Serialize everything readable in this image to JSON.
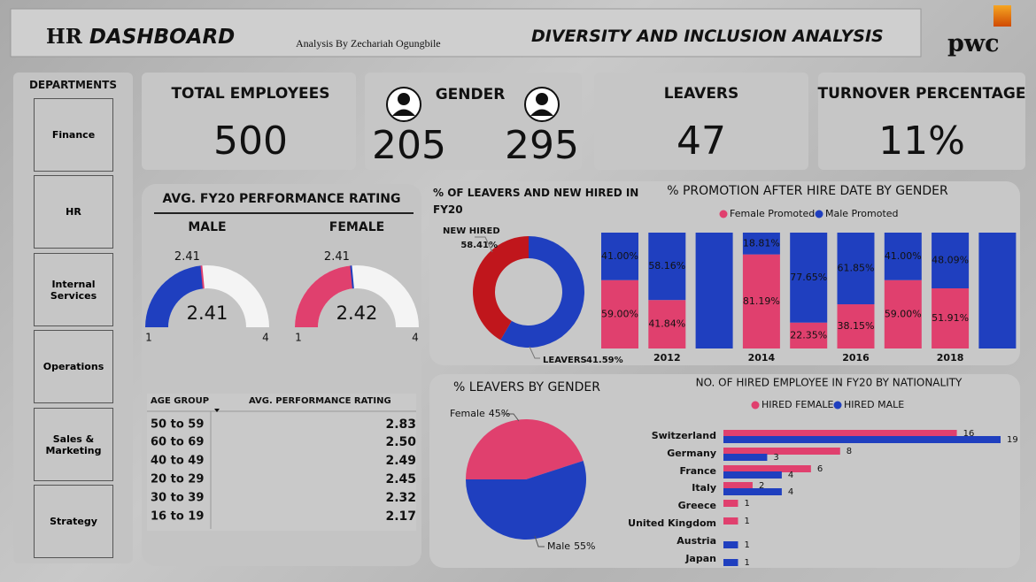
{
  "header": {
    "title_prefix": "HR",
    "title_main": "DASHBOARD",
    "byline": "Analysis By Zechariah Ogungbile",
    "subtitle": "DIVERSITY AND INCLUSION ANALYSIS",
    "logo": "pwc"
  },
  "departments": {
    "title": "DEPARTMENTS",
    "items": [
      "Finance",
      "HR",
      "Internal Services",
      "Operations",
      "Sales & Marketing",
      "Strategy"
    ]
  },
  "kpis": {
    "total_employees": {
      "label": "TOTAL EMPLOYEES",
      "value": 500
    },
    "gender": {
      "label": "GENDER",
      "female": 205,
      "male": 295
    },
    "leavers": {
      "label": "LEAVERS",
      "value": 47
    },
    "turnover": {
      "label": "TURNOVER PERCENTAGE",
      "value": 11,
      "value_label": "11%"
    }
  },
  "table": {
    "headers": [
      "AGE GROUP",
      "AVG. PERFORMANCE RATING"
    ],
    "rows": [
      [
        "50 to 59",
        "2.83"
      ],
      [
        "60 to 69",
        "2.50"
      ],
      [
        "40 to 49",
        "2.49"
      ],
      [
        "20 to 29",
        "2.45"
      ],
      [
        "30 to 39",
        "2.32"
      ],
      [
        "16 to 19",
        "2.17"
      ]
    ]
  },
  "chart_data": [
    {
      "type": "gauge",
      "title": "AVG. FY20 PERFORMANCE RATING",
      "gauges": [
        {
          "name": "MALE",
          "value": 2.41,
          "target": 2.41,
          "min": 1,
          "max": 4,
          "color": "#1f3fbf",
          "target_color": "#e0406e"
        },
        {
          "name": "FEMALE",
          "value": 2.42,
          "target": 2.41,
          "min": 1,
          "max": 4,
          "color": "#e0406e",
          "target_color": "#1f3fbf"
        }
      ]
    },
    {
      "type": "donut",
      "title": "% OF LEAVERS AND NEW HIRED IN FY20",
      "categories": [
        "NEW HIRED",
        "LEAVERS"
      ],
      "values": [
        58.41,
        41.59
      ],
      "value_labels": [
        "58.41%",
        "41.59%"
      ],
      "colors": [
        "#1f3fbf",
        "#c0161c"
      ]
    },
    {
      "type": "stacked_bar",
      "title": "% PROMOTION AFTER HIRE DATE BY GENDER",
      "categories": [
        null,
        "2012",
        null,
        "2014",
        null,
        "2016",
        null,
        "2018",
        null
      ],
      "series": [
        {
          "name": "Female Promoted",
          "color": "#e0406e",
          "values": [
            59,
            41.84,
            0,
            81.19,
            22.35,
            38.15,
            59,
            51.91,
            0
          ],
          "value_labels": [
            "59.00%",
            "41.84%",
            null,
            "81.19%",
            "22.35%",
            "38.15%",
            "59.00%",
            "51.91%",
            null
          ]
        },
        {
          "name": "Male Promoted",
          "color": "#1f3fbf",
          "values": [
            41,
            58.16,
            100,
            18.81,
            77.65,
            61.85,
            41,
            48.09,
            100
          ],
          "value_labels": [
            "41.00%",
            "58.16%",
            null,
            "18.81%",
            "77.65%",
            "61.85%",
            "41.00%",
            "48.09%",
            null
          ]
        }
      ],
      "ylim": [
        0,
        100
      ]
    },
    {
      "type": "pie",
      "title": "% LEAVERS BY GENDER",
      "categories": [
        "Female",
        "Male"
      ],
      "values": [
        45,
        55
      ],
      "value_labels": [
        "45%",
        "55%"
      ],
      "colors": [
        "#e0406e",
        "#1f3fbf"
      ]
    },
    {
      "type": "hbar",
      "title": "NO. OF HIRED EMPLOYEE IN FY20 BY NATIONALITY",
      "categories": [
        "Switzerland",
        "Germany",
        "France",
        "Italy",
        "Greece",
        "United Kingdom",
        "Austria",
        "Japan"
      ],
      "series": [
        {
          "name": "HIRED FEMALE",
          "color": "#e0406e",
          "values": [
            16,
            8,
            6,
            2,
            1,
            1,
            null,
            null
          ]
        },
        {
          "name": "HIRED MALE",
          "color": "#1f3fbf",
          "values": [
            19,
            3,
            4,
            4,
            null,
            null,
            1,
            1
          ]
        }
      ],
      "xlim": [
        0,
        19
      ]
    }
  ]
}
